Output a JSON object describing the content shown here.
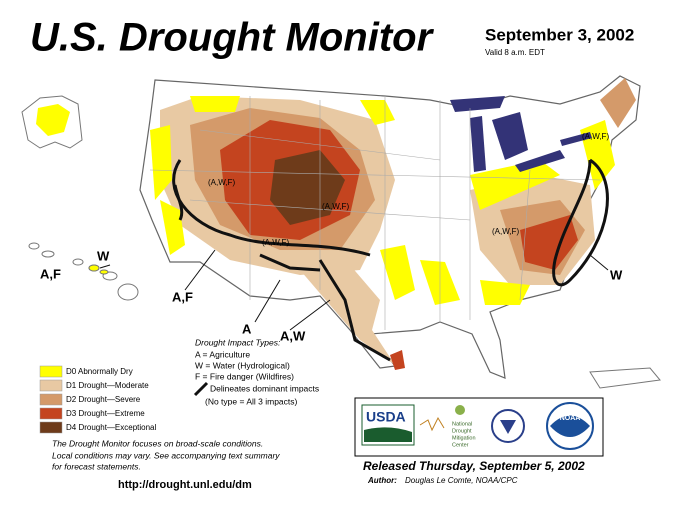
{
  "header": {
    "title": "U.S. Drought Monitor",
    "date": "September 3, 2002",
    "valid": "Valid 8 a.m. EDT"
  },
  "legend": {
    "items": [
      {
        "label": "D0 Abnormally Dry",
        "color": "#ffff00"
      },
      {
        "label": "D1 Drought—Moderate",
        "color": "#e8c9a3"
      },
      {
        "label": "D2 Drought—Severe",
        "color": "#d49a6a"
      },
      {
        "label": "D3 Drought—Extreme",
        "color": "#c4441f"
      },
      {
        "label": "D4 Drought—Exceptional",
        "color": "#6e3b1a"
      }
    ]
  },
  "impacts": {
    "title": "Drought Impact Types:",
    "types": [
      "A = Agriculture",
      "W = Water (Hydrological)",
      "F = Fire danger (Wildfires)"
    ],
    "line": "Delineates dominant impacts",
    "none": "(No type = All 3 impacts)"
  },
  "note": [
    "The Drought Monitor focuses on broad-scale conditions.",
    "Local conditions may vary. See accompanying text summary",
    "for forecast statements."
  ],
  "url": "http://drought.unl.edu/dm",
  "released": "Released Thursday, September 5, 2002",
  "author": {
    "label": "Author:",
    "name": "Douglas Le Comte, NOAA/CPC"
  },
  "logos": {
    "usda": "USDA",
    "ndmc": [
      "National",
      "Drought",
      "Mitigation",
      "Center"
    ],
    "noaa": "NOAA"
  },
  "map": {
    "labels": [
      "(A,W,F)",
      "(A,W,F)",
      "(A,W,F)",
      "(A,W,F)",
      "(A,W,F)",
      "A,F",
      "W",
      "A,F",
      "A",
      "A,W",
      "W"
    ]
  }
}
